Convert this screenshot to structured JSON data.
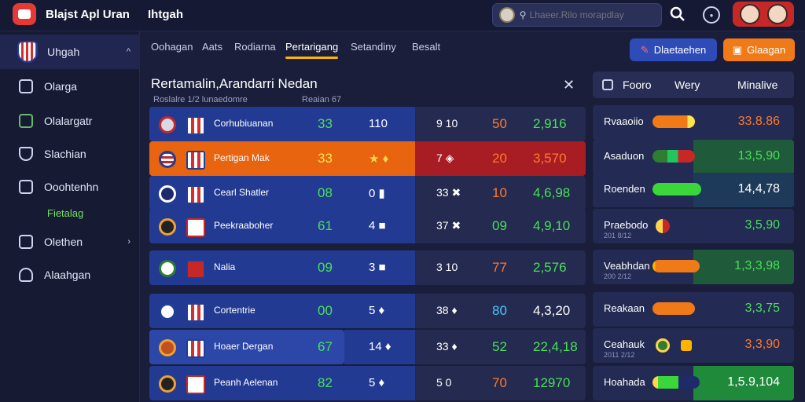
{
  "header": {
    "app_title": "Blajst Apl Uran",
    "page_heading": "Ihtgah",
    "search_placeholder": "Lhaeer.Rilo morapdlay"
  },
  "sidebar": {
    "items": [
      {
        "label": "Uhgah"
      },
      {
        "label": "Olarga"
      },
      {
        "label": "Olalargatr"
      },
      {
        "label": "Slachian"
      },
      {
        "label": "Ooohtenhn"
      },
      {
        "label": "Olethen"
      },
      {
        "label": "Alaahgan"
      }
    ],
    "sub_label": "Fietalag"
  },
  "tabs": [
    {
      "label": "Oohagan"
    },
    {
      "label": "Aats"
    },
    {
      "label": "Rodiarna"
    },
    {
      "label": "Pertarigang"
    },
    {
      "label": "Setandiny"
    },
    {
      "label": "Besalt"
    }
  ],
  "toolbar": {
    "primary_label": "Dlaetaehen",
    "secondary_label": "Glaagan"
  },
  "panel": {
    "title": "Rertamalin,Arandarri Nedan",
    "sub1": "Roslalre 1/2 lunaedomre",
    "sub2": "Reaian 67"
  },
  "table": {
    "rows": [
      {
        "team": "Corhubiuanan",
        "c1": "33",
        "c2": "110",
        "c3": "9 10",
        "c4": "50",
        "c5": "2,916"
      },
      {
        "team": "Pertigan Mak",
        "c1": "33",
        "c2": "★ ♦",
        "c3": "7 ◈",
        "c4": "20",
        "c5": "3,570"
      },
      {
        "team": "Cearl Shatler",
        "c1": "08",
        "c2": "0 ▮",
        "c3": "33 ✖",
        "c4": "10",
        "c5": "4,6,98"
      },
      {
        "team": "Peekraaboher",
        "c1": "61",
        "c2": "4 ■",
        "c3": "37 ✖",
        "c4": "09",
        "c5": "4,9,10"
      },
      {
        "team": "Nalia",
        "c1": "09",
        "c2": "3 ■",
        "c3": "3 10",
        "c4": "77",
        "c5": "2,576"
      },
      {
        "team": "Cortentrie",
        "c1": "00",
        "c2": "5 ♦",
        "c3": "38 ♦",
        "c4": "80",
        "c5": "4,3,20"
      },
      {
        "team": "Hoaer Dergan",
        "c1": "67",
        "c2": "14 ♦",
        "c3": "33 ♦",
        "c4": "52",
        "c5": "22,4,18"
      },
      {
        "team": "Peanh Aelenan",
        "c1": "82",
        "c2": "5 ♦",
        "c3": "5 0",
        "c4": "70",
        "c5": "12970"
      }
    ]
  },
  "right_panel": {
    "headers": [
      "Fooro",
      "Wery",
      "Minalive"
    ],
    "rows": [
      {
        "label": "Rvaaoiio",
        "sub": "",
        "value": "33.8.86",
        "value_color": "#ff7a2a"
      },
      {
        "label": "Asaduon",
        "sub": "",
        "value": "13,5,90",
        "value_color": "#48e058"
      },
      {
        "label": "Roenden",
        "sub": "",
        "value": "14,4,78",
        "value_color": "#fff"
      },
      {
        "label": "Praebodo",
        "sub": "201 8/12",
        "value": "3,5,90",
        "value_color": "#48e058"
      },
      {
        "label": "Veabhdan",
        "sub": "200 2/12",
        "value": "1,3,3,98",
        "value_color": "#48e058"
      },
      {
        "label": "Reakaan",
        "sub": "",
        "value": "3,3,75",
        "value_color": "#48e058"
      },
      {
        "label": "Ceahauk",
        "sub": "2011 2/12",
        "value": "3,3,90",
        "value_color": "#ff7a2a"
      },
      {
        "label": "Hoahada",
        "sub": "",
        "value": "1,5.9,104",
        "value_color": "#fff"
      }
    ]
  },
  "colors": {
    "accent_orange": "#f07a18",
    "accent_blue": "#2f4bb8",
    "positive": "#48e058",
    "negative": "#ff7a2a"
  }
}
